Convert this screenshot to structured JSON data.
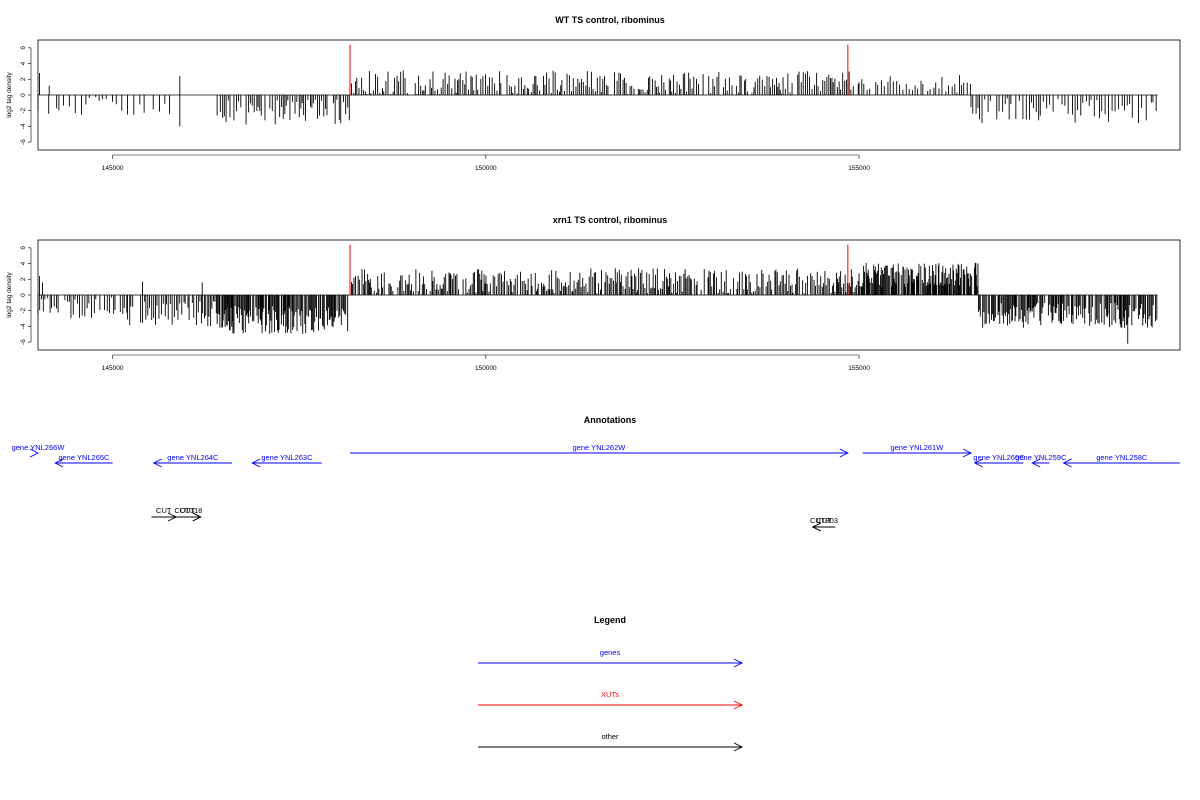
{
  "chart_data": [
    {
      "type": "bar",
      "title": "WT TS control, ribominus",
      "xlabel": "",
      "ylabel": "log2 tag density",
      "xlim": [
        144000,
        159300
      ],
      "ylim": [
        -7,
        7
      ],
      "x_ticks": [
        145000,
        150000,
        155000
      ],
      "x_tick_labels": [
        "145000",
        "150000",
        "155000"
      ],
      "y_ticks": [
        -6,
        -4,
        -2,
        0,
        2,
        4,
        6
      ],
      "y_tick_labels": [
        "-6",
        "-4",
        "-2",
        "0",
        "2",
        "4",
        "6"
      ],
      "baseline_range": [
        144000,
        159000
      ],
      "highlight_color": "#ff0000",
      "highlight_lines": [
        {
          "x": 148180,
          "y": 6.4
        },
        {
          "x": 154850,
          "y": 6.4
        }
      ],
      "series": [
        {
          "x_range": [
            144000,
            145800
          ],
          "mean": -1.4,
          "spread": 1.2,
          "step": 70,
          "seed": 11
        },
        {
          "x_range": [
            146400,
            148200
          ],
          "mean": -2.2,
          "spread": 1.6,
          "step": 28,
          "seed": 12
        },
        {
          "x_range": [
            148200,
            155000
          ],
          "mean": 1.6,
          "spread": 1.5,
          "step": 26,
          "seed": 13
        },
        {
          "x_range": [
            155000,
            156500
          ],
          "mean": 1.5,
          "spread": 1.2,
          "step": 40,
          "seed": 14
        },
        {
          "x_range": [
            156500,
            159000
          ],
          "mean": -2.0,
          "spread": 1.6,
          "step": 35,
          "seed": 15
        }
      ],
      "points": [
        {
          "x": 144020,
          "y": 2.8
        },
        {
          "x": 144150,
          "y": 1.2
        },
        {
          "x": 144250,
          "y": -1.7
        },
        {
          "x": 145900,
          "y": 2.4
        },
        {
          "x": 145900,
          "y": -4.0
        }
      ]
    },
    {
      "type": "bar",
      "title": "xrn1 TS control, ribominus",
      "xlabel": "",
      "ylabel": "log2 tag density",
      "xlim": [
        144000,
        159300
      ],
      "ylim": [
        -7,
        7
      ],
      "x_ticks": [
        145000,
        150000,
        155000
      ],
      "x_tick_labels": [
        "145000",
        "150000",
        "155000"
      ],
      "y_ticks": [
        -6,
        -4,
        -2,
        0,
        2,
        4,
        6
      ],
      "y_tick_labels": [
        "-6",
        "-4",
        "-2",
        "0",
        "2",
        "4",
        "6"
      ],
      "baseline_range": [
        144000,
        159000
      ],
      "highlight_color": "#ff0000",
      "highlight_lines": [
        {
          "x": 148180,
          "y": 6.4
        },
        {
          "x": 154850,
          "y": 6.4
        }
      ],
      "series": [
        {
          "x_range": [
            144000,
            145200
          ],
          "mean": -1.6,
          "spread": 1.4,
          "step": 30,
          "seed": 21
        },
        {
          "x_range": [
            145200,
            146400
          ],
          "mean": -2.4,
          "spread": 1.6,
          "step": 22,
          "seed": 22
        },
        {
          "x_range": [
            146400,
            148150
          ],
          "mean": -3.2,
          "spread": 1.8,
          "step": 12,
          "seed": 23
        },
        {
          "x_range": [
            148200,
            155000
          ],
          "mean": 1.8,
          "spread": 1.6,
          "step": 18,
          "seed": 24
        },
        {
          "x_range": [
            155000,
            156600
          ],
          "mean": 2.6,
          "spread": 1.6,
          "step": 10,
          "seed": 25
        },
        {
          "x_range": [
            156600,
            159000
          ],
          "mean": -2.6,
          "spread": 1.6,
          "step": 14,
          "seed": 26
        }
      ],
      "points": [
        {
          "x": 144020,
          "y": 2.4
        },
        {
          "x": 144060,
          "y": 1.6
        },
        {
          "x": 145400,
          "y": 1.7
        },
        {
          "x": 146200,
          "y": 1.6
        },
        {
          "x": 158600,
          "y": -6.2
        }
      ]
    }
  ],
  "annotations": {
    "title": "Annotations",
    "genes": [
      {
        "label": "gene YNL266W",
        "start": 143500,
        "end": 144000,
        "strand": "+",
        "row": 0
      },
      {
        "label": "gene YNL265C",
        "start": 144230,
        "end": 145000,
        "strand": "-",
        "row": 1
      },
      {
        "label": "gene YNL264C",
        "start": 145550,
        "end": 146600,
        "strand": "-",
        "row": 1
      },
      {
        "label": "gene YNL263C",
        "start": 146870,
        "end": 147800,
        "strand": "-",
        "row": 1
      },
      {
        "label": "gene YNL262W",
        "start": 148180,
        "end": 154850,
        "strand": "+",
        "row": 0
      },
      {
        "label": "gene YNL261W",
        "start": 155050,
        "end": 156500,
        "strand": "+",
        "row": 0
      },
      {
        "label": "gene YNL260C",
        "start": 156550,
        "end": 157200,
        "strand": "-",
        "row": 1
      },
      {
        "label": "gene YNL259C",
        "start": 157320,
        "end": 157550,
        "strand": "-",
        "row": 1
      },
      {
        "label": "gene YNL258C",
        "start": 157740,
        "end": 159500,
        "strand": "-",
        "row": 1
      }
    ],
    "cuts": [
      {
        "label": "CUT",
        "start": 145520,
        "end": 145850,
        "strand": "+",
        "row": 0
      },
      {
        "label": "CUT",
        "start": 145820,
        "end": 146180,
        "strand": "+",
        "row": 0
      },
      {
        "label": "CUT318",
        "start": 145850,
        "end": 146180,
        "strand": "+",
        "row": 0
      },
      {
        "label": "CUT",
        "start": 154380,
        "end": 154680,
        "strand": "-",
        "row": 1
      },
      {
        "label": "CUT803",
        "start": 154380,
        "end": 154680,
        "strand": "-",
        "row": 1
      }
    ]
  },
  "legend": {
    "title": "Legend",
    "items": [
      {
        "label": "genes",
        "color": "#0000ff"
      },
      {
        "label": "XUTs",
        "color": "#ff0000"
      },
      {
        "label": "other",
        "color": "#000000"
      }
    ]
  },
  "colors": {
    "gene": "#0000ff",
    "cut": "#000000",
    "xut": "#ff0000"
  }
}
